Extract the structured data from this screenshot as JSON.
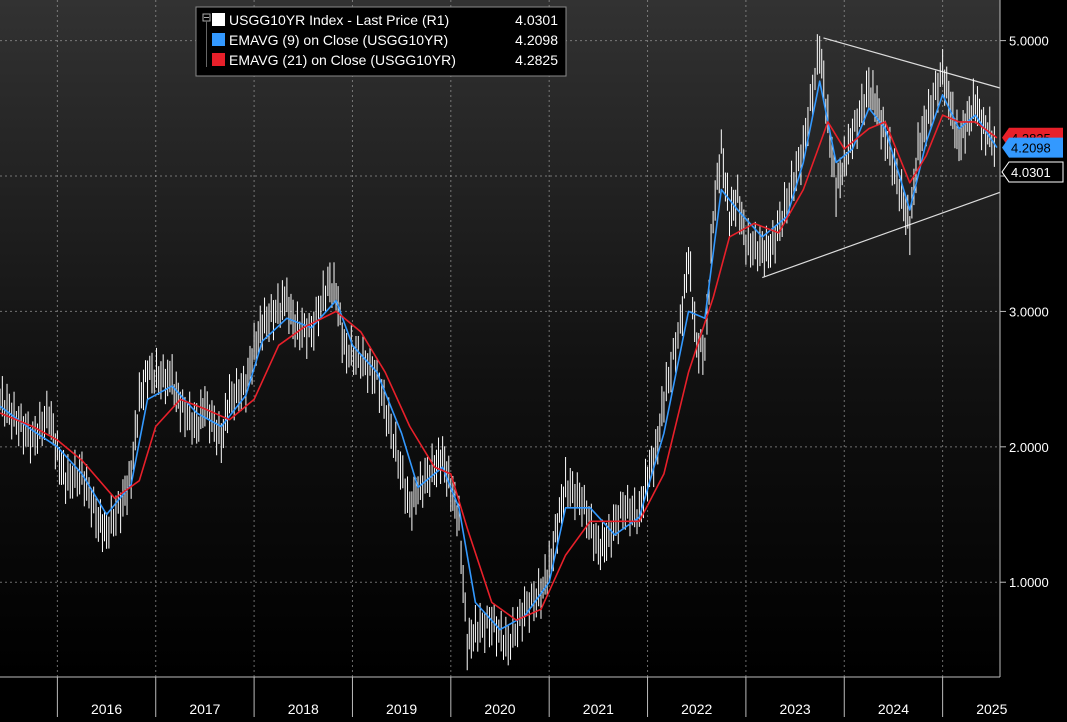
{
  "chart_data": {
    "type": "line",
    "x_axis": {
      "labels": [
        "2016",
        "2017",
        "2018",
        "2019",
        "2020",
        "2021",
        "2022",
        "2023",
        "2024",
        "2025"
      ],
      "range": [
        "2015-06-01",
        "2025-08-01"
      ]
    },
    "y_axis": {
      "position": "right",
      "range": [
        0.3,
        5.3
      ],
      "ticks": [
        1.0,
        2.0,
        3.0,
        4.0,
        5.0
      ],
      "tick_labels": [
        "1.0000",
        "2.0000",
        "3.0000",
        "",
        "5.0000"
      ]
    },
    "grid": true,
    "legend_position": "top-left",
    "legend": [
      {
        "label": "USGG10YR Index - Last Price (R1)",
        "value": "4.0301",
        "color": "#ffffff"
      },
      {
        "label": "EMAVG (9)  on Close (USGG10YR)",
        "value": "4.2098",
        "color": "#3399ff"
      },
      {
        "label": "EMAVG (21)  on Close (USGG10YR)",
        "value": "4.2825",
        "color": "#e8202a"
      }
    ],
    "last_value_tags": [
      {
        "text": "4.2825",
        "value": 4.2825,
        "color": "#e8202a"
      },
      {
        "text": "4.2098",
        "value": 4.2098,
        "color": "#3399ff"
      },
      {
        "text": "4.0301",
        "value": 4.0301,
        "color": "#ffffff"
      }
    ],
    "trendlines": [
      {
        "name": "upper",
        "from": [
          "2023-10-15",
          5.02
        ],
        "to": [
          "2025-08-01",
          4.65
        ]
      },
      {
        "name": "lower",
        "from": [
          "2023-03-01",
          3.25
        ],
        "to": [
          "2025-08-01",
          3.88
        ]
      }
    ],
    "series": [
      {
        "name": "USGG10YR Index - Last Price (R1)",
        "color": "#ffffff",
        "points": [
          [
            "2015-06",
            2.35
          ],
          [
            "2015-08",
            2.2
          ],
          [
            "2015-10",
            2.05
          ],
          [
            "2015-12",
            2.25
          ],
          [
            "2016-01",
            1.95
          ],
          [
            "2016-02",
            1.75
          ],
          [
            "2016-04",
            1.8
          ],
          [
            "2016-06",
            1.45
          ],
          [
            "2016-07",
            1.38
          ],
          [
            "2016-09",
            1.6
          ],
          [
            "2016-10",
            1.8
          ],
          [
            "2016-11",
            2.35
          ],
          [
            "2016-12",
            2.55
          ],
          [
            "2017-03",
            2.48
          ],
          [
            "2017-04",
            2.3
          ],
          [
            "2017-06",
            2.15
          ],
          [
            "2017-07",
            2.3
          ],
          [
            "2017-09",
            2.05
          ],
          [
            "2017-10",
            2.35
          ],
          [
            "2017-12",
            2.45
          ],
          [
            "2018-01",
            2.72
          ],
          [
            "2018-02",
            2.9
          ],
          [
            "2018-05",
            3.08
          ],
          [
            "2018-06",
            2.88
          ],
          [
            "2018-08",
            2.85
          ],
          [
            "2018-10",
            3.2
          ],
          [
            "2018-11",
            3.15
          ],
          [
            "2018-12",
            2.72
          ],
          [
            "2019-02",
            2.65
          ],
          [
            "2019-04",
            2.52
          ],
          [
            "2019-06",
            2.05
          ],
          [
            "2019-08",
            1.55
          ],
          [
            "2019-09",
            1.68
          ],
          [
            "2019-11",
            1.85
          ],
          [
            "2019-12",
            1.92
          ],
          [
            "2020-01",
            1.7
          ],
          [
            "2020-02",
            1.45
          ],
          [
            "2020-03",
            0.54
          ],
          [
            "2020-04",
            0.65
          ],
          [
            "2020-06",
            0.7
          ],
          [
            "2020-08",
            0.53
          ],
          [
            "2020-10",
            0.8
          ],
          [
            "2020-12",
            0.92
          ],
          [
            "2021-01",
            1.1
          ],
          [
            "2021-02",
            1.42
          ],
          [
            "2021-03",
            1.72
          ],
          [
            "2021-05",
            1.6
          ],
          [
            "2021-07",
            1.25
          ],
          [
            "2021-08",
            1.3
          ],
          [
            "2021-10",
            1.55
          ],
          [
            "2021-12",
            1.5
          ],
          [
            "2022-01",
            1.78
          ],
          [
            "2022-02",
            1.95
          ],
          [
            "2022-03",
            2.35
          ],
          [
            "2022-05",
            2.9
          ],
          [
            "2022-06",
            3.4
          ],
          [
            "2022-07",
            2.75
          ],
          [
            "2022-08",
            2.7
          ],
          [
            "2022-09",
            3.7
          ],
          [
            "2022-10",
            4.2
          ],
          [
            "2022-11",
            3.7
          ],
          [
            "2022-12",
            3.85
          ],
          [
            "2023-01",
            3.5
          ],
          [
            "2023-03",
            3.45
          ],
          [
            "2023-04",
            3.45
          ],
          [
            "2023-06",
            3.8
          ],
          [
            "2023-08",
            4.2
          ],
          [
            "2023-10",
            4.95
          ],
          [
            "2023-11",
            4.4
          ],
          [
            "2023-12",
            3.9
          ],
          [
            "2024-01",
            4.1
          ],
          [
            "2024-02",
            4.3
          ],
          [
            "2024-04",
            4.65
          ],
          [
            "2024-05",
            4.5
          ],
          [
            "2024-06",
            4.3
          ],
          [
            "2024-08",
            3.85
          ],
          [
            "2024-09",
            3.62
          ],
          [
            "2024-10",
            4.2
          ],
          [
            "2024-11",
            4.4
          ],
          [
            "2025-01",
            4.78
          ],
          [
            "2025-02",
            4.5
          ],
          [
            "2025-03",
            4.25
          ],
          [
            "2025-04",
            4.4
          ],
          [
            "2025-05",
            4.55
          ],
          [
            "2025-06",
            4.35
          ],
          [
            "2025-07",
            4.3
          ],
          [
            "2025-07-20",
            4.03
          ]
        ]
      },
      {
        "name": "EMAVG (9)  on Close (USGG10YR)",
        "color": "#3399ff",
        "points": [
          [
            "2015-06",
            2.3
          ],
          [
            "2015-10",
            2.12
          ],
          [
            "2016-01",
            2.0
          ],
          [
            "2016-04",
            1.8
          ],
          [
            "2016-07",
            1.5
          ],
          [
            "2016-10",
            1.72
          ],
          [
            "2016-12",
            2.35
          ],
          [
            "2017-03",
            2.45
          ],
          [
            "2017-06",
            2.25
          ],
          [
            "2017-09",
            2.15
          ],
          [
            "2017-12",
            2.38
          ],
          [
            "2018-02",
            2.78
          ],
          [
            "2018-05",
            2.95
          ],
          [
            "2018-08",
            2.88
          ],
          [
            "2018-11",
            3.08
          ],
          [
            "2019-01",
            2.75
          ],
          [
            "2019-04",
            2.55
          ],
          [
            "2019-07",
            2.1
          ],
          [
            "2019-09",
            1.7
          ],
          [
            "2019-12",
            1.85
          ],
          [
            "2020-02",
            1.55
          ],
          [
            "2020-04",
            0.85
          ],
          [
            "2020-07",
            0.65
          ],
          [
            "2020-10",
            0.75
          ],
          [
            "2021-01",
            1.0
          ],
          [
            "2021-03",
            1.55
          ],
          [
            "2021-06",
            1.55
          ],
          [
            "2021-09",
            1.35
          ],
          [
            "2021-12",
            1.48
          ],
          [
            "2022-03",
            2.1
          ],
          [
            "2022-06",
            3.0
          ],
          [
            "2022-08",
            2.95
          ],
          [
            "2022-10",
            3.9
          ],
          [
            "2022-12",
            3.75
          ],
          [
            "2023-03",
            3.55
          ],
          [
            "2023-06",
            3.7
          ],
          [
            "2023-08",
            4.1
          ],
          [
            "2023-10",
            4.7
          ],
          [
            "2023-12",
            4.1
          ],
          [
            "2024-02",
            4.2
          ],
          [
            "2024-04",
            4.5
          ],
          [
            "2024-06",
            4.35
          ],
          [
            "2024-09",
            3.75
          ],
          [
            "2024-11",
            4.25
          ],
          [
            "2025-01",
            4.6
          ],
          [
            "2025-03",
            4.35
          ],
          [
            "2025-05",
            4.45
          ],
          [
            "2025-07-20",
            4.2098
          ]
        ]
      },
      {
        "name": "EMAVG (21)  on Close (USGG10YR)",
        "color": "#e8202a",
        "points": [
          [
            "2015-06",
            2.25
          ],
          [
            "2015-10",
            2.15
          ],
          [
            "2016-01",
            2.05
          ],
          [
            "2016-04",
            1.9
          ],
          [
            "2016-08",
            1.62
          ],
          [
            "2016-11",
            1.75
          ],
          [
            "2017-01",
            2.15
          ],
          [
            "2017-04",
            2.35
          ],
          [
            "2017-07",
            2.28
          ],
          [
            "2017-10",
            2.2
          ],
          [
            "2018-01",
            2.35
          ],
          [
            "2018-04",
            2.75
          ],
          [
            "2018-07",
            2.88
          ],
          [
            "2018-11",
            3.0
          ],
          [
            "2019-02",
            2.85
          ],
          [
            "2019-05",
            2.55
          ],
          [
            "2019-08",
            2.15
          ],
          [
            "2019-11",
            1.85
          ],
          [
            "2020-01",
            1.8
          ],
          [
            "2020-03",
            1.4
          ],
          [
            "2020-06",
            0.85
          ],
          [
            "2020-09",
            0.72
          ],
          [
            "2020-12",
            0.8
          ],
          [
            "2021-03",
            1.2
          ],
          [
            "2021-06",
            1.45
          ],
          [
            "2021-09",
            1.45
          ],
          [
            "2021-12",
            1.45
          ],
          [
            "2022-03",
            1.8
          ],
          [
            "2022-06",
            2.55
          ],
          [
            "2022-09",
            3.1
          ],
          [
            "2022-11",
            3.55
          ],
          [
            "2023-02",
            3.65
          ],
          [
            "2023-05",
            3.58
          ],
          [
            "2023-08",
            3.9
          ],
          [
            "2023-11",
            4.4
          ],
          [
            "2024-01",
            4.2
          ],
          [
            "2024-04",
            4.35
          ],
          [
            "2024-06",
            4.4
          ],
          [
            "2024-09",
            3.95
          ],
          [
            "2024-11",
            4.15
          ],
          [
            "2025-01",
            4.45
          ],
          [
            "2025-03",
            4.4
          ],
          [
            "2025-05",
            4.4
          ],
          [
            "2025-07-20",
            4.2825
          ]
        ]
      }
    ]
  }
}
